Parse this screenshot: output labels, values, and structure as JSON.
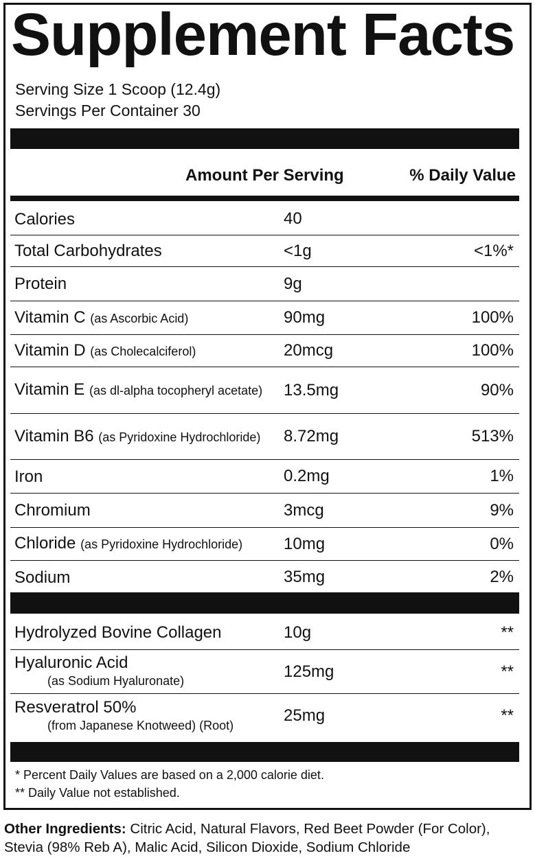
{
  "title": "Supplement Facts",
  "serving_size": "Serving Size 1 Scoop (12.4g)",
  "servings_per_container": "Servings Per Container 30",
  "header": {
    "amount": "Amount Per Serving",
    "daily_value": "% Daily Value"
  },
  "nutrients": [
    {
      "name": "Calories",
      "amount": "40"
    },
    {
      "name": "Total Carbohydrates",
      "amount": "<1g",
      "dv": "<1%*"
    },
    {
      "name": "Protein",
      "amount": "9g"
    },
    {
      "name": "Vitamin C",
      "detail": "(as Ascorbic Acid)",
      "amount": "90mg",
      "dv": "100%"
    },
    {
      "name": "Vitamin D",
      "detail": "(as Cholecalciferol)",
      "amount": "20mcg",
      "dv": "100%"
    },
    {
      "name": "Vitamin E",
      "detail": "(as dl-alpha tocopheryl acetate)",
      "amount": "13.5mg",
      "dv": "90%"
    },
    {
      "name": "Vitamin B6",
      "detail": "(as Pyridoxine Hydrochloride)",
      "amount": "8.72mg",
      "dv": "513%"
    },
    {
      "name": "Iron",
      "amount": "0.2mg",
      "dv": "1%"
    },
    {
      "name": "Chromium",
      "amount": "3mcg",
      "dv": "9%"
    },
    {
      "name": "Chloride",
      "detail": "(as Pyridoxine Hydrochloride)",
      "amount": "10mg",
      "dv": "0%"
    },
    {
      "name": "Sodium",
      "amount": "35mg",
      "dv": "2%"
    }
  ],
  "blend": [
    {
      "name": "Hydrolyzed Bovine Collagen",
      "amount": "10g",
      "dv": "**"
    },
    {
      "name": "Hyaluronic Acid",
      "sub": "(as Sodium Hyaluronate)",
      "amount": "125mg",
      "dv": "**"
    },
    {
      "name": "Resveratrol 50%",
      "sub": "(from Japanese Knotweed) (Root)",
      "amount": "25mg",
      "dv": "**"
    }
  ],
  "footnotes": [
    "* Percent Daily Values are based on a 2,000 calorie diet.",
    "** Daily Value not established."
  ],
  "other_ingredients": {
    "label": "Other Ingredients:",
    "text": "Citric Acid, Natural Flavors, Red Beet Powder (For Color), Stevia (98% Reb A), Malic Acid, Silicon Dioxide, Sodium Chloride"
  }
}
